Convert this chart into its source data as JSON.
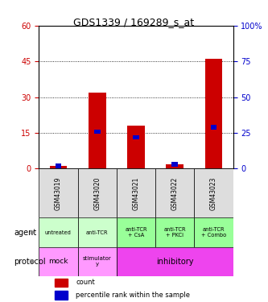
{
  "title": "GDS1339 / 169289_s_at",
  "samples": [
    "GSM43019",
    "GSM43020",
    "GSM43021",
    "GSM43022",
    "GSM43023"
  ],
  "count_values": [
    1,
    32,
    18,
    2,
    46
  ],
  "percentile_values": [
    2,
    26,
    22,
    3,
    29
  ],
  "count_color": "#cc0000",
  "percentile_color": "#0000cc",
  "ylim_left": [
    0,
    60
  ],
  "ylim_right": [
    0,
    100
  ],
  "yticks_left": [
    0,
    15,
    30,
    45,
    60
  ],
  "yticks_right": [
    0,
    25,
    50,
    75,
    100
  ],
  "ytick_labels_left": [
    "0",
    "15",
    "30",
    "45",
    "60"
  ],
  "ytick_labels_right": [
    "0",
    "25",
    "50",
    "75",
    "100%"
  ],
  "agent_labels": [
    "untreated",
    "anti-TCR",
    "anti-TCR\n+ CsA",
    "anti-TCR\n+ PKCi",
    "anti-TCR\n+ Combo"
  ],
  "agent_colors": [
    "#ccffcc",
    "#ccffcc",
    "#99ff99",
    "#99ff99",
    "#99ff99"
  ],
  "bar_width": 0.45,
  "background_color": "#ffffff",
  "plot_bg": "#ffffff",
  "sample_bg": "#dddddd",
  "mock_color": "#ff99ff",
  "stimulatory_color": "#ff99ff",
  "inhibitory_color": "#ee44ee",
  "legend_count": "count",
  "legend_pct": "percentile rank within the sample"
}
